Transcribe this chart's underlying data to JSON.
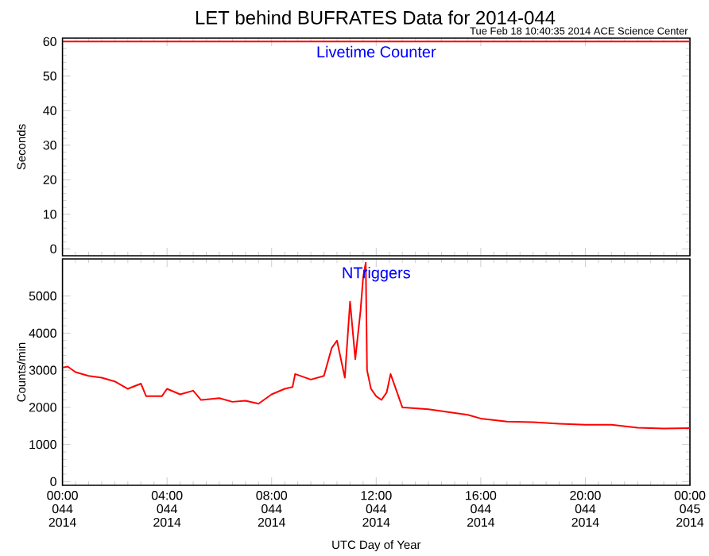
{
  "chart_data": [
    {
      "type": "line",
      "title": "LET behind BUFRATES Data for 2014-044",
      "subtitle": "Tue Feb 18 10:40:35 2014 ACE Science Center",
      "ylabel": "Seconds",
      "annotations": [
        "Livetime Counter"
      ],
      "x": [
        "2014-02-13T00:00",
        "2014-02-13T06:00",
        "2014-02-13T12:00",
        "2014-02-13T18:00",
        "2014-02-14T00:00"
      ],
      "values": [
        60,
        60,
        60,
        60,
        60
      ],
      "color": "#ff0000",
      "xlim": [
        "2014-02-13T00:00",
        "2014-02-14T00:00"
      ],
      "ylim": [
        -2,
        61
      ],
      "yticks": [
        0,
        10,
        20,
        30,
        40,
        50,
        60
      ],
      "xticks": [
        {
          "value": "2014-02-13T00:00",
          "label": null
        },
        {
          "value": "2014-02-13T04:00",
          "label": null
        },
        {
          "value": "2014-02-13T08:00",
          "label": null
        },
        {
          "value": "2014-02-13T12:00",
          "label": null
        },
        {
          "value": "2014-02-13T16:00",
          "label": null
        },
        {
          "value": "2014-02-13T20:00",
          "label": null
        },
        {
          "value": "2014-02-14T00:00",
          "label": null
        }
      ],
      "tick_labels": "y",
      "marker": "none"
    },
    {
      "type": "line",
      "ylabel": "Counts/min",
      "xlabel": "UTC Day of Year",
      "annotations": [
        "NTriggers"
      ],
      "x": [
        "2014-02-13T00:00",
        "2014-02-13T00:12",
        "2014-02-13T00:30",
        "2014-02-13T01:00",
        "2014-02-13T01:30",
        "2014-02-13T02:00",
        "2014-02-13T02:30",
        "2014-02-13T03:00",
        "2014-02-13T03:12",
        "2014-02-13T03:48",
        "2014-02-13T04:00",
        "2014-02-13T04:30",
        "2014-02-13T05:00",
        "2014-02-13T05:18",
        "2014-02-13T06:00",
        "2014-02-13T06:30",
        "2014-02-13T07:00",
        "2014-02-13T07:30",
        "2014-02-13T08:00",
        "2014-02-13T08:30",
        "2014-02-13T08:48",
        "2014-02-13T08:54",
        "2014-02-13T09:30",
        "2014-02-13T10:00",
        "2014-02-13T10:18",
        "2014-02-13T10:30",
        "2014-02-13T10:48",
        "2014-02-13T11:00",
        "2014-02-13T11:12",
        "2014-02-13T11:24",
        "2014-02-13T11:30",
        "2014-02-13T11:36",
        "2014-02-13T11:39",
        "2014-02-13T11:48",
        "2014-02-13T12:00",
        "2014-02-13T12:12",
        "2014-02-13T12:24",
        "2014-02-13T12:33",
        "2014-02-13T12:48",
        "2014-02-13T13:00",
        "2014-02-13T14:00",
        "2014-02-13T15:00",
        "2014-02-13T15:30",
        "2014-02-13T16:00",
        "2014-02-13T17:00",
        "2014-02-13T18:00",
        "2014-02-13T19:00",
        "2014-02-13T20:00",
        "2014-02-13T21:00",
        "2014-02-13T22:00",
        "2014-02-13T23:00",
        "2014-02-14T00:00"
      ],
      "values": [
        3070,
        3100,
        2950,
        2850,
        2800,
        2700,
        2500,
        2640,
        2300,
        2300,
        2500,
        2350,
        2450,
        2200,
        2250,
        2150,
        2180,
        2100,
        2350,
        2500,
        2550,
        2900,
        2750,
        2850,
        3600,
        3800,
        2800,
        4850,
        3300,
        4600,
        5500,
        5900,
        3000,
        2500,
        2300,
        2200,
        2400,
        2900,
        2400,
        2000,
        1950,
        1850,
        1800,
        1700,
        1620,
        1600,
        1560,
        1530,
        1530,
        1450,
        1430,
        1440
      ],
      "color": "#ff0000",
      "xlim": [
        "2014-02-13T00:00",
        "2014-02-14T00:00"
      ],
      "ylim": [
        -100,
        6000
      ],
      "yticks": [
        0,
        1000,
        2000,
        3000,
        4000,
        5000
      ],
      "xticks": [
        {
          "value": "2014-02-13T00:00",
          "label": "00:00 044 2014"
        },
        {
          "value": "2014-02-13T04:00",
          "label": "04:00 044 2014"
        },
        {
          "value": "2014-02-13T08:00",
          "label": "08:00 044 2014"
        },
        {
          "value": "2014-02-13T12:00",
          "label": "12:00 044 2014"
        },
        {
          "value": "2014-02-13T16:00",
          "label": "16:00 044 2014"
        },
        {
          "value": "2014-02-13T20:00",
          "label": "20:00 044 2014"
        },
        {
          "value": "2014-02-14T00:00",
          "label": "00:00 045 2014"
        }
      ],
      "marker": "none"
    }
  ]
}
